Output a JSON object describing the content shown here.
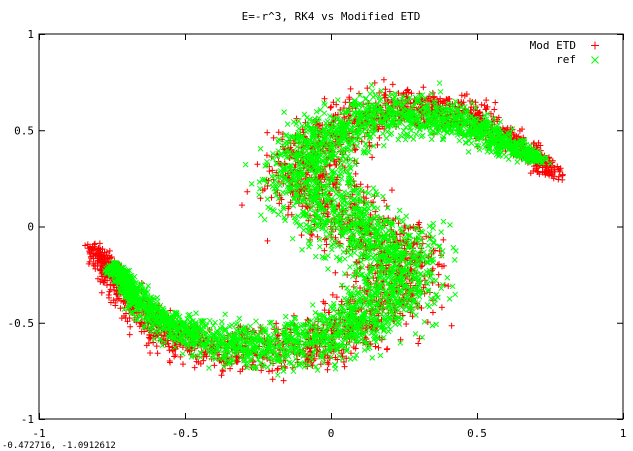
{
  "chart_data": {
    "type": "scatter",
    "title": "E=-r^3, RK4 vs Modified ETD",
    "xlabel": "",
    "ylabel": "",
    "xlim": [
      -1,
      1
    ],
    "ylim": [
      -1,
      1
    ],
    "xticks": [
      {
        "value": -1,
        "label": "-1"
      },
      {
        "value": -0.5,
        "label": "-0.5"
      },
      {
        "value": 0,
        "label": "0"
      },
      {
        "value": 0.5,
        "label": "0.5"
      },
      {
        "value": 1,
        "label": "1"
      }
    ],
    "yticks": [
      {
        "value": -1,
        "label": "-1"
      },
      {
        "value": -0.5,
        "label": "-0.5"
      },
      {
        "value": 0,
        "label": "0"
      },
      {
        "value": 0.5,
        "label": "0.5"
      },
      {
        "value": 1,
        "label": "1"
      }
    ],
    "grid": false,
    "legend_position": "top-right",
    "series": [
      {
        "name": "Mod ETD",
        "marker": "plus",
        "color": "#ff0000",
        "description_shape": "S-shaped spiral band, arms extend to (0.78,0.26) and (-0.81,-0.11)",
        "anchor_points": [
          [
            -0.81,
            -0.11
          ],
          [
            -0.7,
            -0.38
          ],
          [
            -0.55,
            -0.58
          ],
          [
            -0.3,
            -0.66
          ],
          [
            0.0,
            -0.6
          ],
          [
            0.2,
            -0.4
          ],
          [
            0.25,
            -0.15
          ],
          [
            0.1,
            0.0
          ],
          [
            -0.1,
            0.2
          ],
          [
            -0.05,
            0.45
          ],
          [
            0.2,
            0.62
          ],
          [
            0.45,
            0.6
          ],
          [
            0.62,
            0.45
          ],
          [
            0.78,
            0.26
          ]
        ]
      },
      {
        "name": "ref",
        "marker": "cross",
        "color": "#00ff00",
        "description_shape": "S-shaped spiral band, arms extend to (0.72,0.35) and (-0.75,-0.2)",
        "anchor_points": [
          [
            -0.75,
            -0.2
          ],
          [
            -0.62,
            -0.45
          ],
          [
            -0.45,
            -0.58
          ],
          [
            -0.25,
            -0.63
          ],
          [
            0.0,
            -0.58
          ],
          [
            0.2,
            -0.4
          ],
          [
            0.25,
            -0.15
          ],
          [
            0.1,
            0.0
          ],
          [
            -0.1,
            0.2
          ],
          [
            -0.05,
            0.45
          ],
          [
            0.2,
            0.6
          ],
          [
            0.45,
            0.55
          ],
          [
            0.6,
            0.42
          ],
          [
            0.72,
            0.35
          ]
        ]
      }
    ]
  },
  "status": {
    "coordinates": "-0.472716,   -1.0912612"
  }
}
